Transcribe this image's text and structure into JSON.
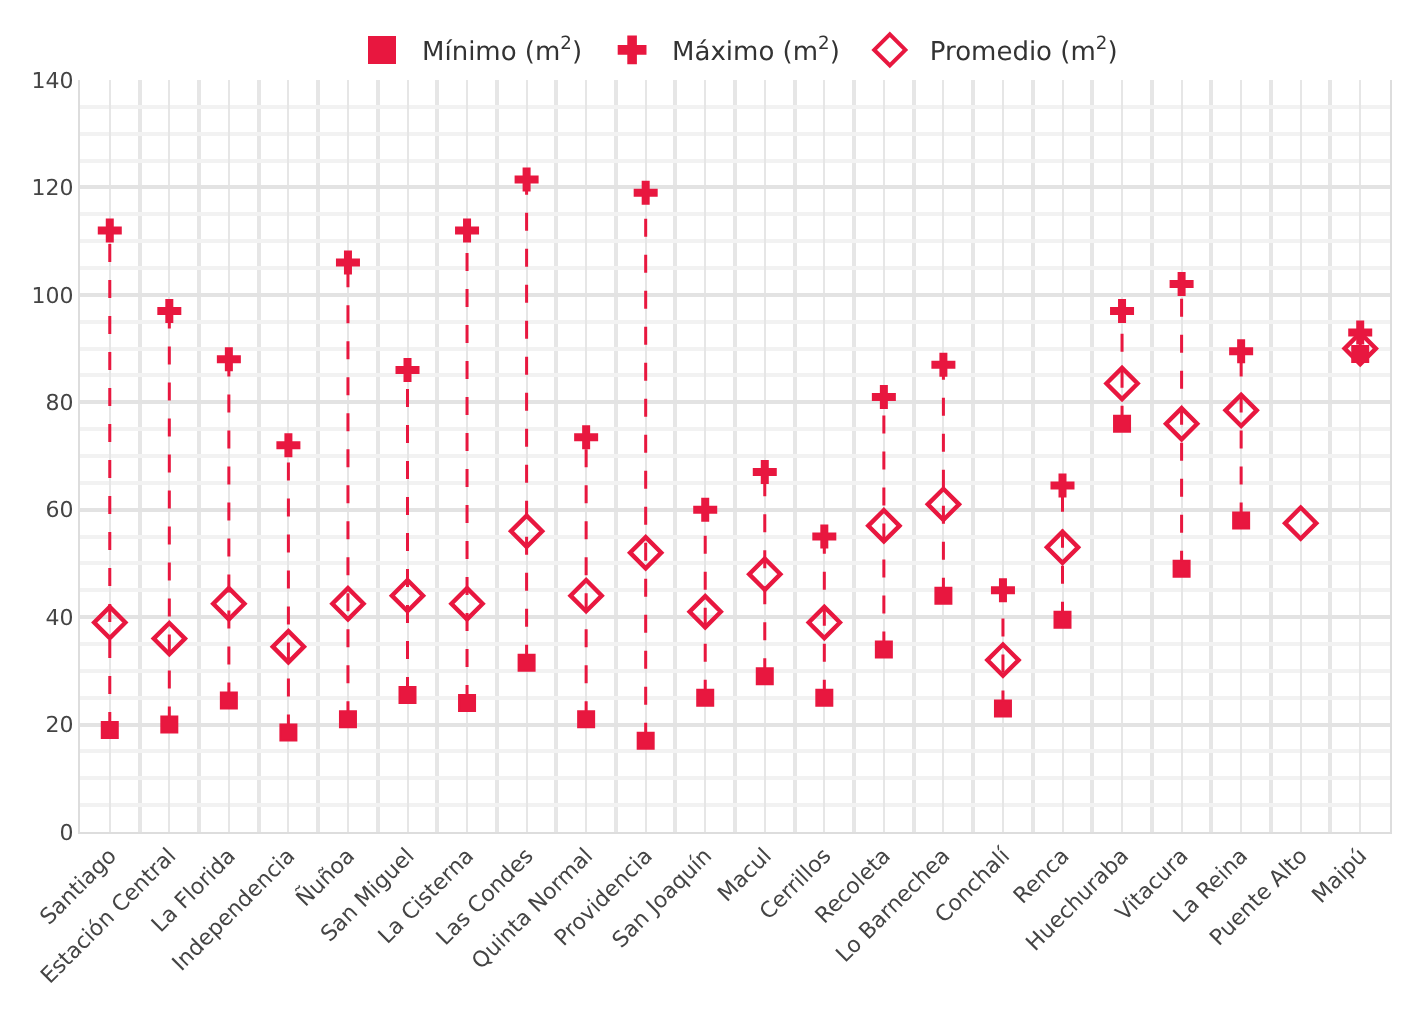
{
  "chart_data": {
    "type": "scatter",
    "categories": [
      "Santiago",
      "Estación Central",
      "La Florida",
      "Independencia",
      "Ñuñoa",
      "San Miguel",
      "La Cisterna",
      "Las Condes",
      "Quinta Normal",
      "Providencia",
      "San Joaquín",
      "Macul",
      "Cerrillos",
      "Recoleta",
      "Lo Barnechea",
      "Conchalí",
      "Renca",
      "Huechuraba",
      "Vitacura",
      "La Reina",
      "Puente Alto",
      "Maipú"
    ],
    "series": [
      {
        "name": "Mínimo (m$^{2}$)",
        "color": "#e8173f",
        "marker": "square",
        "values": [
          19,
          20,
          24.5,
          18.5,
          21,
          25.5,
          24,
          31.5,
          21,
          17,
          25,
          29,
          25,
          34,
          44,
          23,
          39.5,
          76,
          49,
          58,
          null,
          89
        ]
      },
      {
        "name": "Máximo (m$^{2}$)",
        "color": "#e8173f",
        "marker": "cross",
        "values": [
          112,
          97,
          88,
          72,
          106,
          86,
          112,
          121.5,
          73.5,
          119,
          60,
          67,
          55,
          81,
          87,
          45,
          64.5,
          97,
          102,
          89.5,
          null,
          93
        ]
      },
      {
        "name": "Promedio (m$^{2}$)",
        "color": "#e8173f",
        "marker": "diamond",
        "values": [
          39,
          36,
          42.5,
          34.5,
          42.5,
          44,
          42.5,
          56,
          44,
          52,
          41,
          48,
          39,
          57,
          61,
          32,
          53,
          83.5,
          76,
          78.5,
          57.5,
          90
        ]
      }
    ],
    "ylim": [
      0,
      140
    ],
    "yticks": [
      0,
      20,
      40,
      60,
      80,
      100,
      120,
      140
    ],
    "grid": true,
    "legend": "top",
    "line_style": "dashed"
  }
}
